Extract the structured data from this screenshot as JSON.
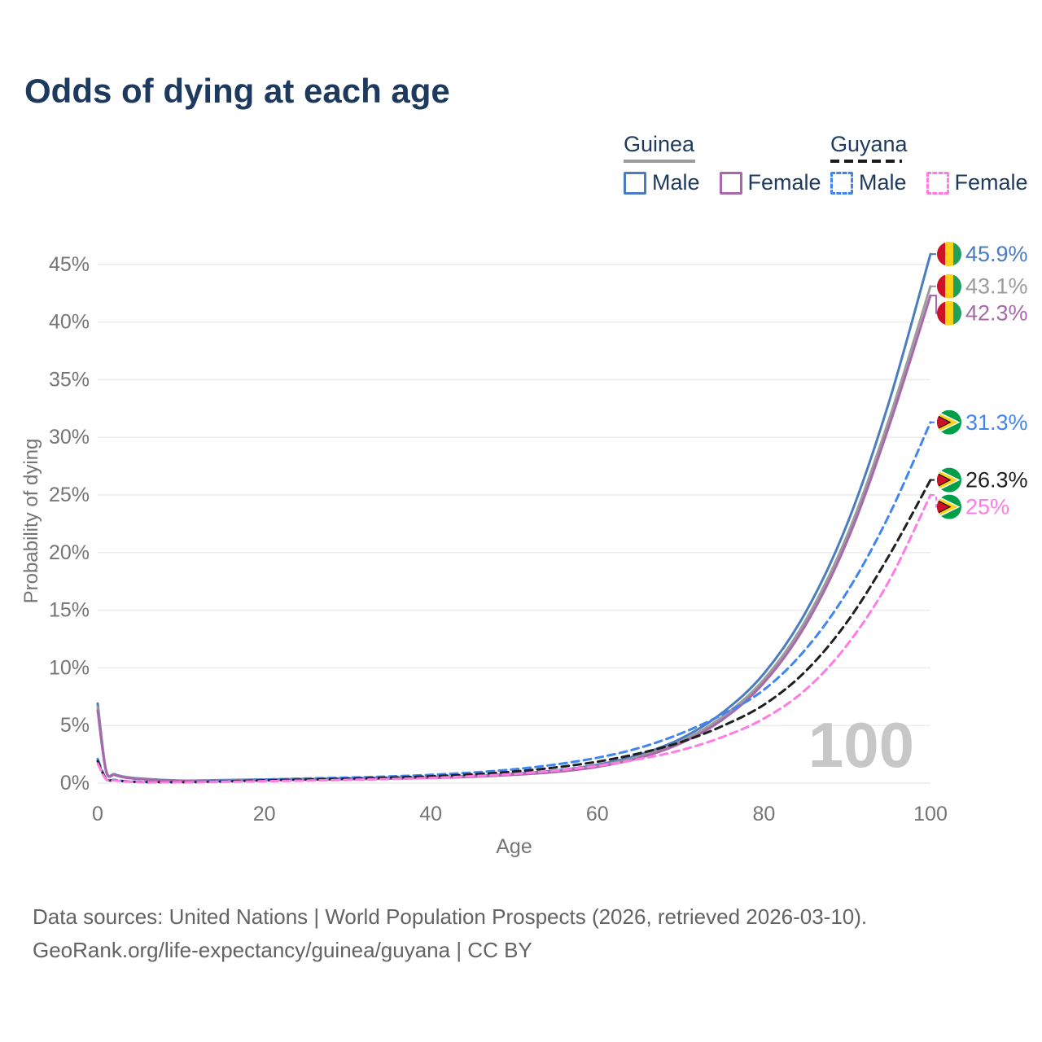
{
  "title": "Odds of dying at each age",
  "watermark": "100",
  "legend": {
    "groups": [
      {
        "label": "Guinea",
        "line_color": "#9c9c9c",
        "line_dashed": false,
        "items": [
          {
            "label": "Male",
            "color": "#4a7dbf",
            "dashed": false
          },
          {
            "label": "Female",
            "color": "#a968ab",
            "dashed": false
          }
        ]
      },
      {
        "label": "Guyana",
        "line_color": "#1c1c1c",
        "line_dashed": true,
        "items": [
          {
            "label": "Male",
            "color": "#4186f0",
            "dashed": true
          },
          {
            "label": "Female",
            "color": "#ff7ce4",
            "dashed": true
          }
        ]
      }
    ]
  },
  "chart_data": {
    "type": "line",
    "title": "Odds of dying at each age",
    "xlabel": "Age",
    "ylabel": "Probability of dying",
    "xlim": [
      0,
      100
    ],
    "ylim_percent": [
      0,
      46
    ],
    "grid": "horizontal-only",
    "x_ticks": [
      0,
      20,
      40,
      60,
      80,
      100
    ],
    "y_tick_labels": [
      "0%",
      "5%",
      "10%",
      "15%",
      "20%",
      "25%",
      "30%",
      "35%",
      "40%",
      "45%"
    ],
    "y_tick_step_percent": 5,
    "ages": [
      0,
      1,
      2,
      3,
      5,
      10,
      15,
      20,
      25,
      30,
      35,
      40,
      45,
      50,
      55,
      60,
      65,
      70,
      75,
      80,
      85,
      90,
      95,
      100
    ],
    "series": [
      {
        "name": "Guinea Male",
        "country": "Guinea",
        "sex": "Male",
        "color": "#4a7dbf",
        "dashed": false,
        "flag": "guinea",
        "end_label": "45.9%",
        "values_percent": [
          6.9,
          1.15,
          0.78,
          0.58,
          0.4,
          0.22,
          0.26,
          0.32,
          0.36,
          0.4,
          0.45,
          0.52,
          0.63,
          0.82,
          1.1,
          1.6,
          2.45,
          3.85,
          6.1,
          9.5,
          14.8,
          22.5,
          33.0,
          45.9
        ]
      },
      {
        "name": "Guinea Both sexes",
        "country": "Guinea",
        "sex": "Both",
        "color": "#9c9c9c",
        "dashed": false,
        "flag": "guinea",
        "end_label": "43.1%",
        "values_percent": [
          6.6,
          1.1,
          0.74,
          0.55,
          0.38,
          0.2,
          0.24,
          0.29,
          0.33,
          0.37,
          0.42,
          0.49,
          0.59,
          0.77,
          1.03,
          1.5,
          2.3,
          3.62,
          5.75,
          9.0,
          14.1,
          21.5,
          31.5,
          43.1
        ]
      },
      {
        "name": "Guinea Female",
        "country": "Guinea",
        "sex": "Female",
        "color": "#a968ab",
        "dashed": false,
        "flag": "guinea",
        "end_label": "42.3%",
        "values_percent": [
          6.3,
          1.05,
          0.71,
          0.52,
          0.36,
          0.19,
          0.22,
          0.27,
          0.3,
          0.34,
          0.39,
          0.45,
          0.55,
          0.72,
          0.97,
          1.41,
          2.18,
          3.45,
          5.5,
          8.7,
          13.7,
          21.0,
          30.9,
          42.3
        ]
      },
      {
        "name": "Guyana Male",
        "country": "Guyana",
        "sex": "Male",
        "color": "#4186f0",
        "dashed": true,
        "flag": "guyana",
        "end_label": "31.3%",
        "values_percent": [
          2.1,
          0.4,
          0.28,
          0.2,
          0.12,
          0.1,
          0.18,
          0.3,
          0.4,
          0.48,
          0.58,
          0.72,
          0.92,
          1.2,
          1.62,
          2.2,
          3.05,
          4.3,
          5.95,
          8.1,
          11.6,
          16.6,
          23.2,
          31.3
        ]
      },
      {
        "name": "Guyana Both sexes",
        "country": "Guyana",
        "sex": "Both",
        "color": "#1f1f1f",
        "dashed": true,
        "flag": "guyana",
        "end_label": "26.3%",
        "values_percent": [
          1.9,
          0.37,
          0.26,
          0.18,
          0.1,
          0.08,
          0.14,
          0.24,
          0.31,
          0.38,
          0.47,
          0.59,
          0.76,
          1.0,
          1.36,
          1.86,
          2.58,
          3.55,
          4.95,
          6.8,
          9.7,
          14.0,
          19.7,
          26.3
        ]
      },
      {
        "name": "Guyana Female",
        "country": "Guyana",
        "sex": "Female",
        "color": "#ff7ce4",
        "dashed": true,
        "flag": "guyana",
        "end_label": "25%",
        "values_percent": [
          1.7,
          0.34,
          0.24,
          0.17,
          0.09,
          0.07,
          0.11,
          0.17,
          0.22,
          0.28,
          0.35,
          0.45,
          0.6,
          0.8,
          1.09,
          1.5,
          2.08,
          2.85,
          4.0,
          5.6,
          8.1,
          12.0,
          17.5,
          25.0
        ]
      }
    ]
  },
  "footer": {
    "line1": "Data sources: United Nations | World Population Prospects (2026, retrieved 2026-03-10).",
    "line2": "GeoRank.org/life-expectancy/guinea/guyana | CC BY"
  }
}
